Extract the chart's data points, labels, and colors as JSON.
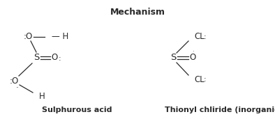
{
  "title": "Mechanism",
  "title_fontsize": 9,
  "title_fontweight": "bold",
  "bg_color": "#ffffff",
  "text_color": "#2a2a2a",
  "font_size": 8.5,
  "label1": "Sulphurous acid",
  "label2": "Thionyl chliride (inorganic)",
  "label_fontsize": 8,
  "label_fontweight": "bold",
  "figsize": [
    3.94,
    1.71
  ],
  "dpi": 100
}
